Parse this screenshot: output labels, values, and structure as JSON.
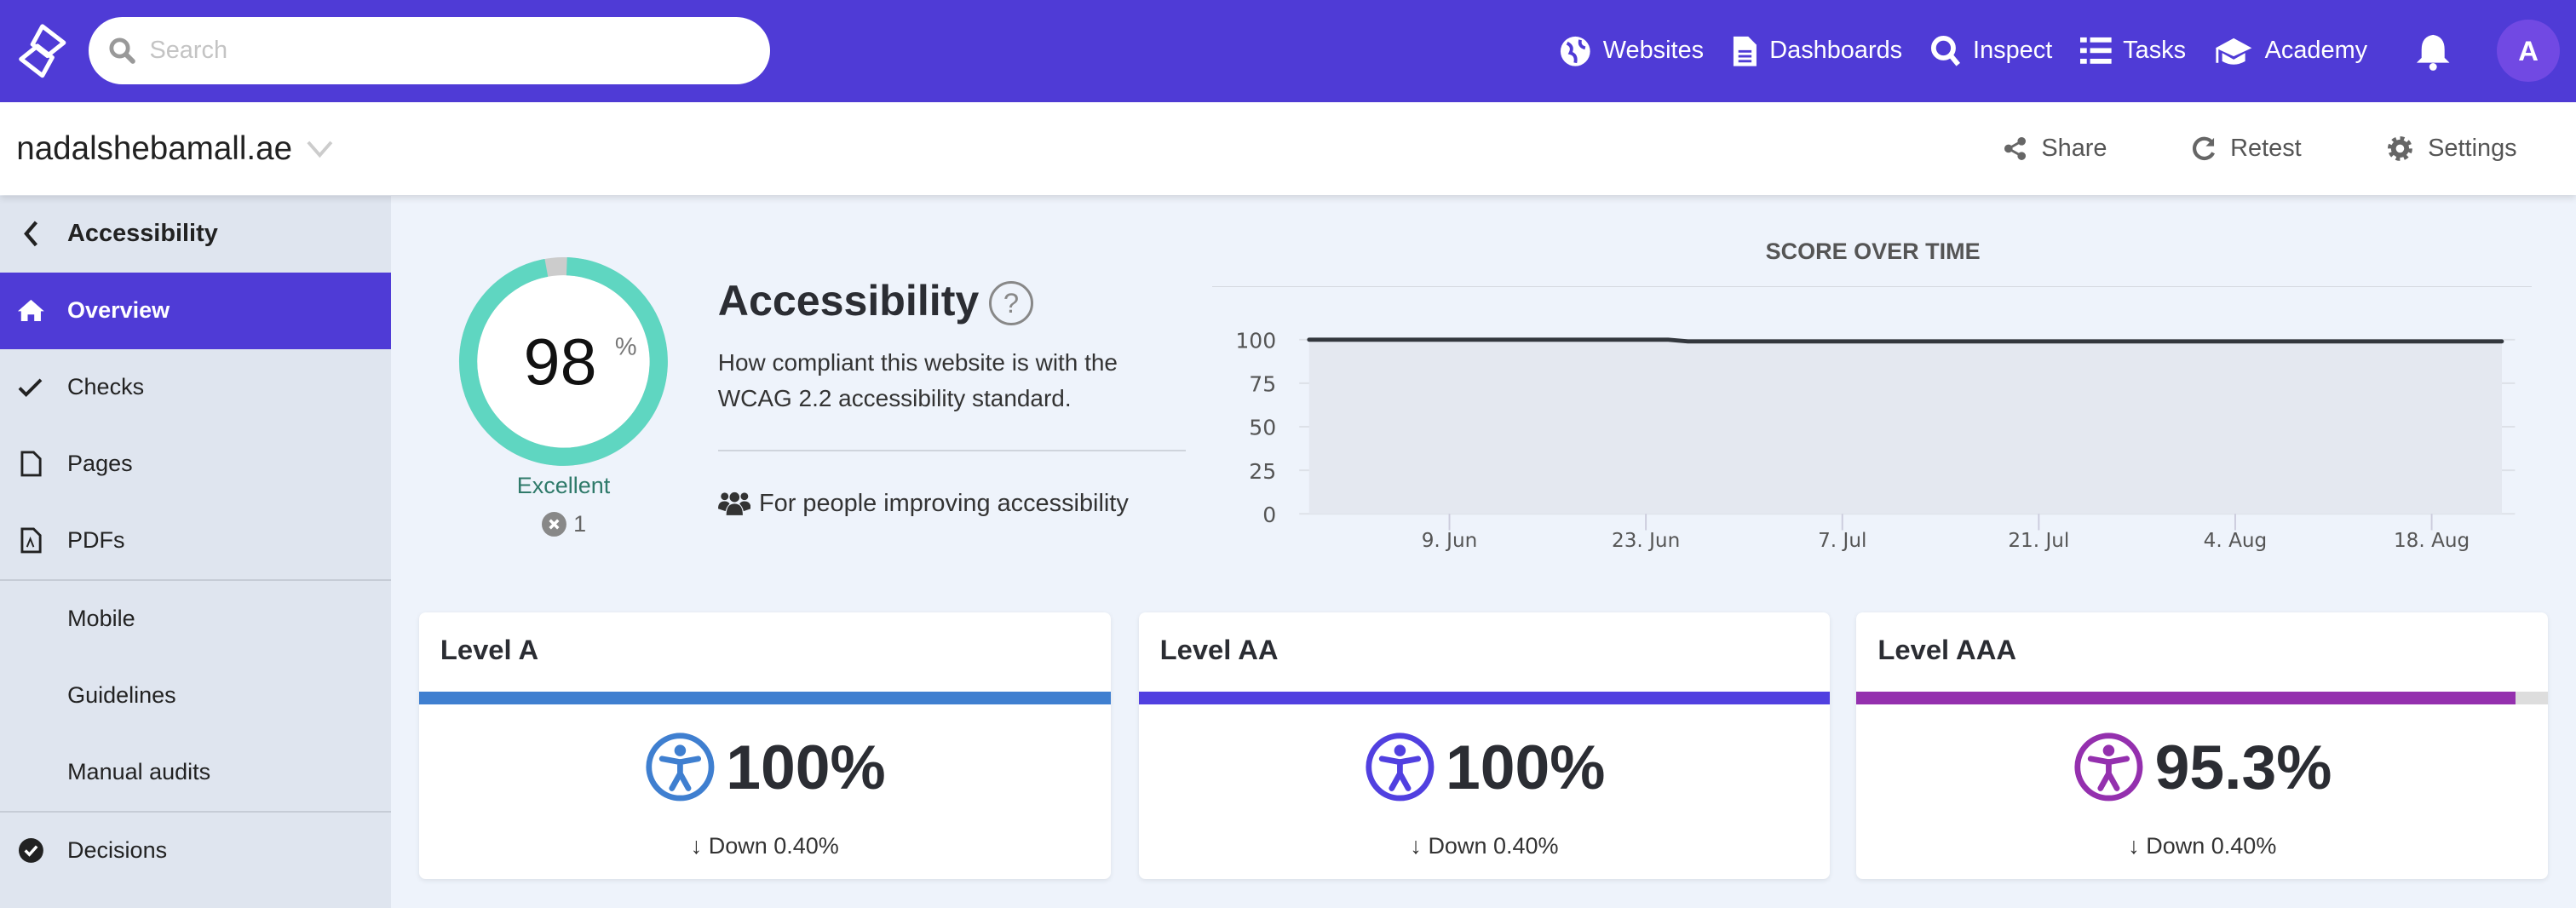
{
  "topbar": {
    "search_placeholder": "Search",
    "nav": [
      {
        "label": "Websites",
        "icon": "globe-icon"
      },
      {
        "label": "Dashboards",
        "icon": "document-icon"
      },
      {
        "label": "Inspect",
        "icon": "search-icon"
      },
      {
        "label": "Tasks",
        "icon": "list-icon"
      },
      {
        "label": "Academy",
        "icon": "graduation-cap-icon"
      }
    ],
    "avatar": "A",
    "brand_color": "#4f3bd6"
  },
  "subbar": {
    "site": "nadalshebamall.ae",
    "share": "Share",
    "retest": "Retest",
    "settings": "Settings"
  },
  "sidebar": {
    "back": "Accessibility",
    "items": [
      "Overview",
      "Checks",
      "Pages",
      "PDFs"
    ],
    "plain": [
      "Mobile",
      "Guidelines",
      "Manual audits"
    ],
    "decisions": "Decisions"
  },
  "score": {
    "value": "98",
    "unit": "%",
    "percent": 98,
    "rating": "Excellent",
    "errors": "1",
    "color": "#5fd6c1"
  },
  "info": {
    "title": "Accessibility",
    "help": "?",
    "description": "How compliant this website is with the WCAG 2.2 accessibility standard.",
    "audience": "For people improving accessibility"
  },
  "chart_data": {
    "type": "area",
    "title": "SCORE OVER TIME",
    "x": [
      "2025-05-30",
      "2025-06-26",
      "2025-08-23"
    ],
    "y": [
      100,
      99,
      99
    ],
    "ylim": [
      0,
      100
    ],
    "yticks": [
      "0",
      "25",
      "50",
      "75",
      "100"
    ],
    "xticks": [
      "9. Jun",
      "23. Jun",
      "7. Jul",
      "21. Jul",
      "4. Aug",
      "18. Aug"
    ],
    "grid": true
  },
  "levels": [
    {
      "title": "Level A",
      "value": "100%",
      "percent": 100,
      "delta": "Down 0.40%",
      "color": "#3f7fd0"
    },
    {
      "title": "Level AA",
      "value": "100%",
      "percent": 100,
      "delta": "Down 0.40%",
      "color": "#5140e0"
    },
    {
      "title": "Level AAA",
      "value": "95.3%",
      "percent": 95.3,
      "delta": "Down 0.40%",
      "color": "#9430ae"
    }
  ]
}
